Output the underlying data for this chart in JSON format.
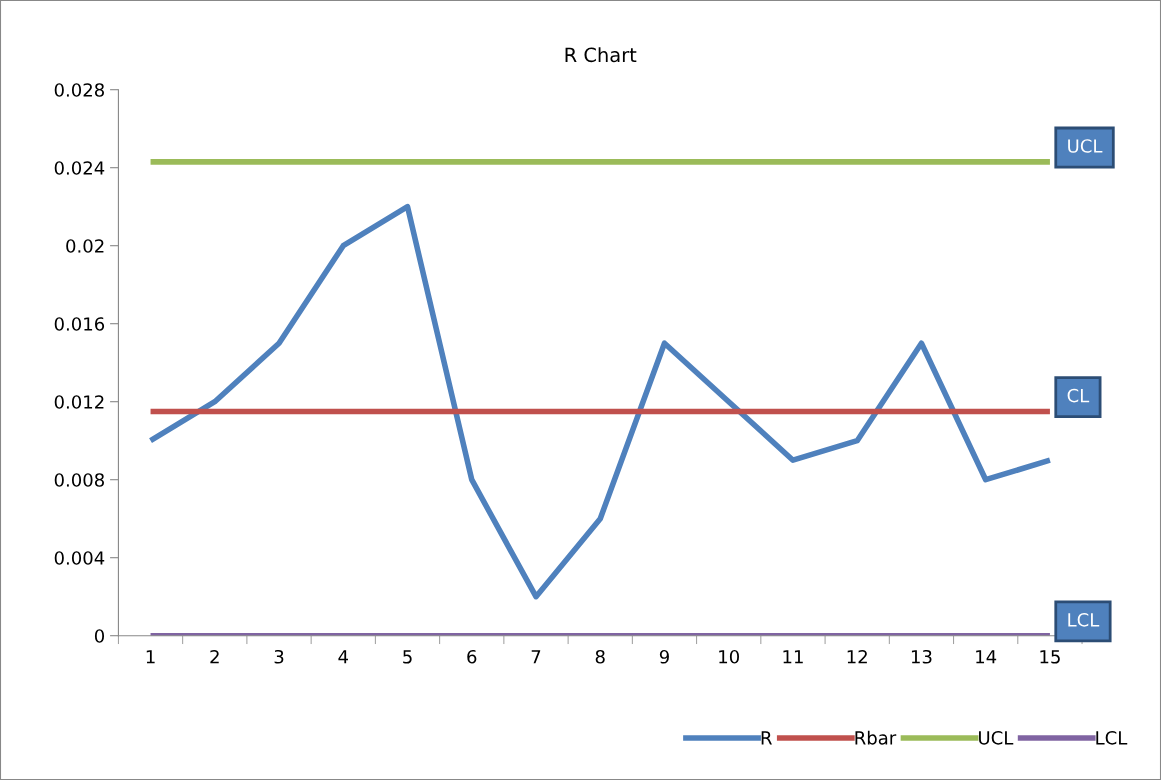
{
  "chart_data": {
    "type": "line",
    "title": "R Chart",
    "categories": [
      "1",
      "2",
      "3",
      "4",
      "5",
      "6",
      "7",
      "8",
      "9",
      "10",
      "11",
      "12",
      "13",
      "14",
      "15"
    ],
    "series": [
      {
        "name": "R",
        "color": "#4f81bd",
        "values": [
          0.01,
          0.012,
          0.015,
          0.02,
          0.022,
          0.008,
          0.002,
          0.006,
          0.015,
          0.012,
          0.009,
          0.01,
          0.015,
          0.008,
          0.009
        ]
      },
      {
        "name": "Rbar",
        "color": "#c0504d",
        "values": [
          0.0115,
          0.0115,
          0.0115,
          0.0115,
          0.0115,
          0.0115,
          0.0115,
          0.0115,
          0.0115,
          0.0115,
          0.0115,
          0.0115,
          0.0115,
          0.0115,
          0.0115
        ]
      },
      {
        "name": "UCL",
        "color": "#9bbb59",
        "values": [
          0.0243,
          0.0243,
          0.0243,
          0.0243,
          0.0243,
          0.0243,
          0.0243,
          0.0243,
          0.0243,
          0.0243,
          0.0243,
          0.0243,
          0.0243,
          0.0243,
          0.0243
        ]
      },
      {
        "name": "LCL",
        "color": "#8064a2",
        "values": [
          0,
          0,
          0,
          0,
          0,
          0,
          0,
          0,
          0,
          0,
          0,
          0,
          0,
          0,
          0
        ]
      }
    ],
    "ylim": [
      0,
      0.028
    ],
    "yticks": [
      0,
      0.004,
      0.008,
      0.012,
      0.016,
      0.02,
      0.024,
      0.028
    ],
    "annotations": [
      {
        "text": "UCL",
        "x": "15",
        "y": 0.0243
      },
      {
        "text": "CL",
        "x": "15",
        "y": 0.0115
      },
      {
        "text": "LCL",
        "x": "15",
        "y": 0
      }
    ],
    "grid": false,
    "legend": "bottom right",
    "marker": "none",
    "line_style": "solid"
  }
}
